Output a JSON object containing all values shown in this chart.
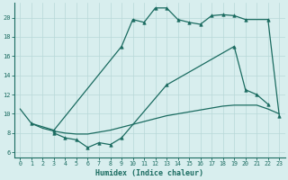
{
  "bg_color": "#d8eeee",
  "line_color": "#1a6b60",
  "grid_color": "#b8d8d8",
  "xlabel": "Humidex (Indice chaleur)",
  "xlim": [
    -0.5,
    23.5
  ],
  "ylim": [
    5.5,
    21.5
  ],
  "yticks": [
    6,
    8,
    10,
    12,
    14,
    16,
    18,
    20
  ],
  "xticks": [
    0,
    1,
    2,
    3,
    4,
    5,
    6,
    7,
    8,
    9,
    10,
    11,
    12,
    13,
    14,
    15,
    16,
    17,
    18,
    19,
    20,
    21,
    22,
    23
  ],
  "line1_x": [
    0,
    1,
    2,
    3,
    4,
    5,
    6,
    7,
    8,
    9,
    10,
    11,
    12,
    13,
    14,
    15,
    16,
    17,
    18,
    19,
    20,
    21,
    22,
    23
  ],
  "line1_y": [
    10.5,
    9.0,
    8.5,
    8.2,
    8.0,
    7.9,
    7.9,
    8.1,
    8.3,
    8.6,
    8.9,
    9.2,
    9.5,
    9.8,
    10.0,
    10.2,
    10.4,
    10.6,
    10.8,
    10.9,
    10.9,
    10.9,
    10.5,
    10.0
  ],
  "line2_x": [
    1,
    3,
    9,
    10,
    11,
    12,
    13,
    14,
    15,
    16,
    17,
    18,
    19,
    20,
    22,
    23
  ],
  "line2_y": [
    9.0,
    8.3,
    17.0,
    19.8,
    19.5,
    21.0,
    21.0,
    19.8,
    19.5,
    19.3,
    20.2,
    20.3,
    20.2,
    19.8,
    19.8,
    9.8
  ],
  "line3_x": [
    3,
    4,
    5,
    6,
    7,
    8,
    9,
    13,
    19,
    20,
    21,
    22
  ],
  "line3_y": [
    8.0,
    7.5,
    7.3,
    6.5,
    7.0,
    6.8,
    7.5,
    13.0,
    17.0,
    12.5,
    12.0,
    11.0
  ]
}
